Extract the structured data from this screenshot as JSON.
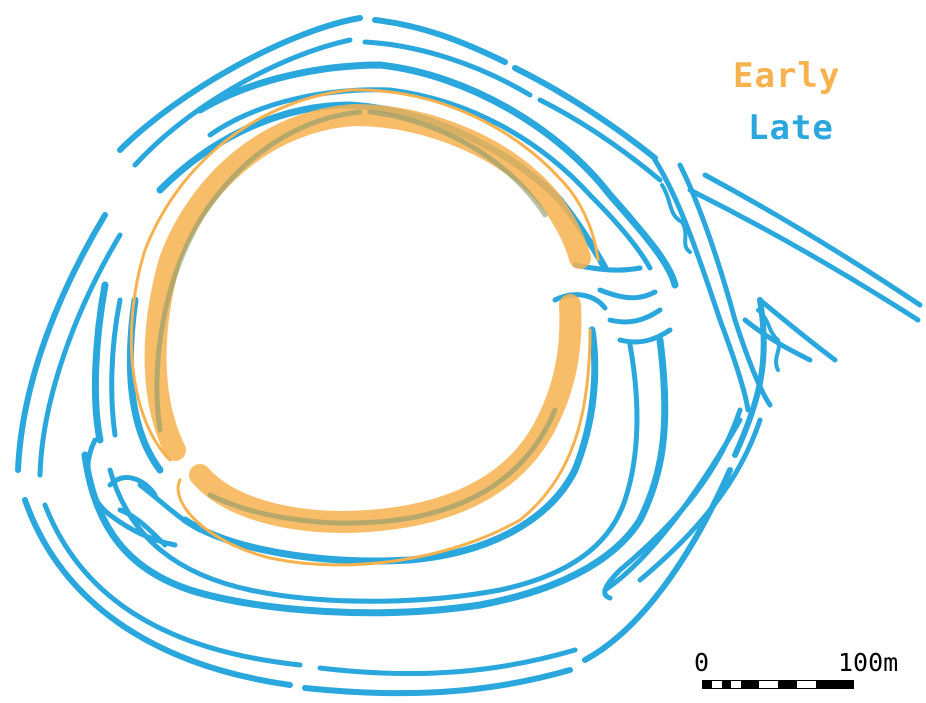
{
  "legend": {
    "early": {
      "label": "Early",
      "color": "#F7B24F"
    },
    "late": {
      "label": "Late",
      "color": "#2AA7DD"
    }
  },
  "scale": {
    "start_label": "0",
    "end_label": "100m",
    "segment_pattern": [
      "black",
      "white",
      "black",
      "white",
      "black",
      "black",
      "white",
      "white",
      "black",
      "black",
      "white",
      "white",
      "black",
      "black",
      "black",
      "black"
    ]
  }
}
